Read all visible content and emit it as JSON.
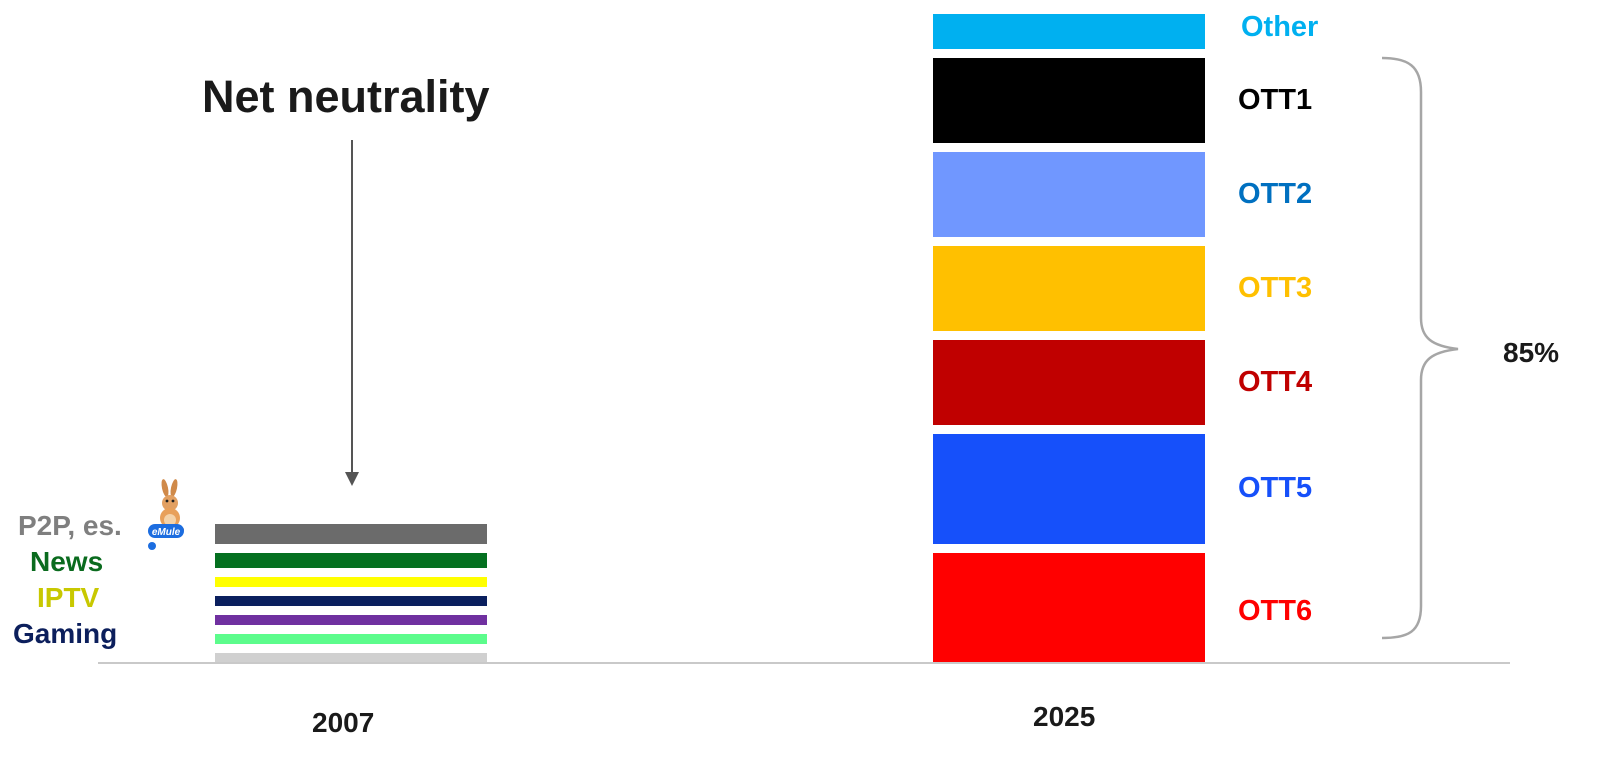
{
  "chart_data": {
    "type": "bar",
    "stacked": true,
    "title": "",
    "xlabel": "",
    "ylabel": "",
    "categories": [
      "2007",
      "2025"
    ],
    "bars": [
      {
        "category": "2007",
        "segments": [
          {
            "name": "",
            "value": 1.0,
            "color": "#d0d0d0"
          },
          {
            "name": "",
            "value": 1.0,
            "color": "#5cfc8c"
          },
          {
            "name": "",
            "value": 1.0,
            "color": "#7030a0"
          },
          {
            "name": "Gaming",
            "value": 1.0,
            "color": "#0a1f5e"
          },
          {
            "name": "IPTV",
            "value": 1.0,
            "color": "#ffff00"
          },
          {
            "name": "News",
            "value": 1.5,
            "color": "#047020"
          },
          {
            "name": "P2P, es.",
            "value": 2.0,
            "color": "#6b6b6b"
          }
        ]
      },
      {
        "category": "2025",
        "segments": [
          {
            "name": "OTT6",
            "value": 11.0,
            "color": "#ff0000"
          },
          {
            "name": "OTT5",
            "value": 11.0,
            "color": "#1650fa"
          },
          {
            "name": "OTT4",
            "value": 8.5,
            "color": "#c00000"
          },
          {
            "name": "OTT3",
            "value": 8.5,
            "color": "#ffc000"
          },
          {
            "name": "OTT2",
            "value": 8.5,
            "color": "#7097ff"
          },
          {
            "name": "OTT1",
            "value": 8.5,
            "color": "#000000"
          },
          {
            "name": "Other",
            "value": 3.5,
            "color": "#00b0f0"
          }
        ]
      }
    ],
    "label_colors": {
      "P2P, es.": "#7f7f7f",
      "News": "#0a6b1e",
      "IPTV": "#c8c800",
      "Gaming": "#0c1f5c",
      "OTT1": "#000000",
      "OTT2": "#0070c0",
      "OTT3": "#ffc000",
      "OTT4": "#c00000",
      "OTT5": "#1650fa",
      "OTT6": "#ff0000",
      "Other": "#00b0f0"
    },
    "annotations": {
      "arrow_label": "Net neutrality",
      "brace_label": "85%"
    },
    "icons": {
      "emule": "emule-mascot-icon"
    },
    "grid": false,
    "legend": "none"
  }
}
